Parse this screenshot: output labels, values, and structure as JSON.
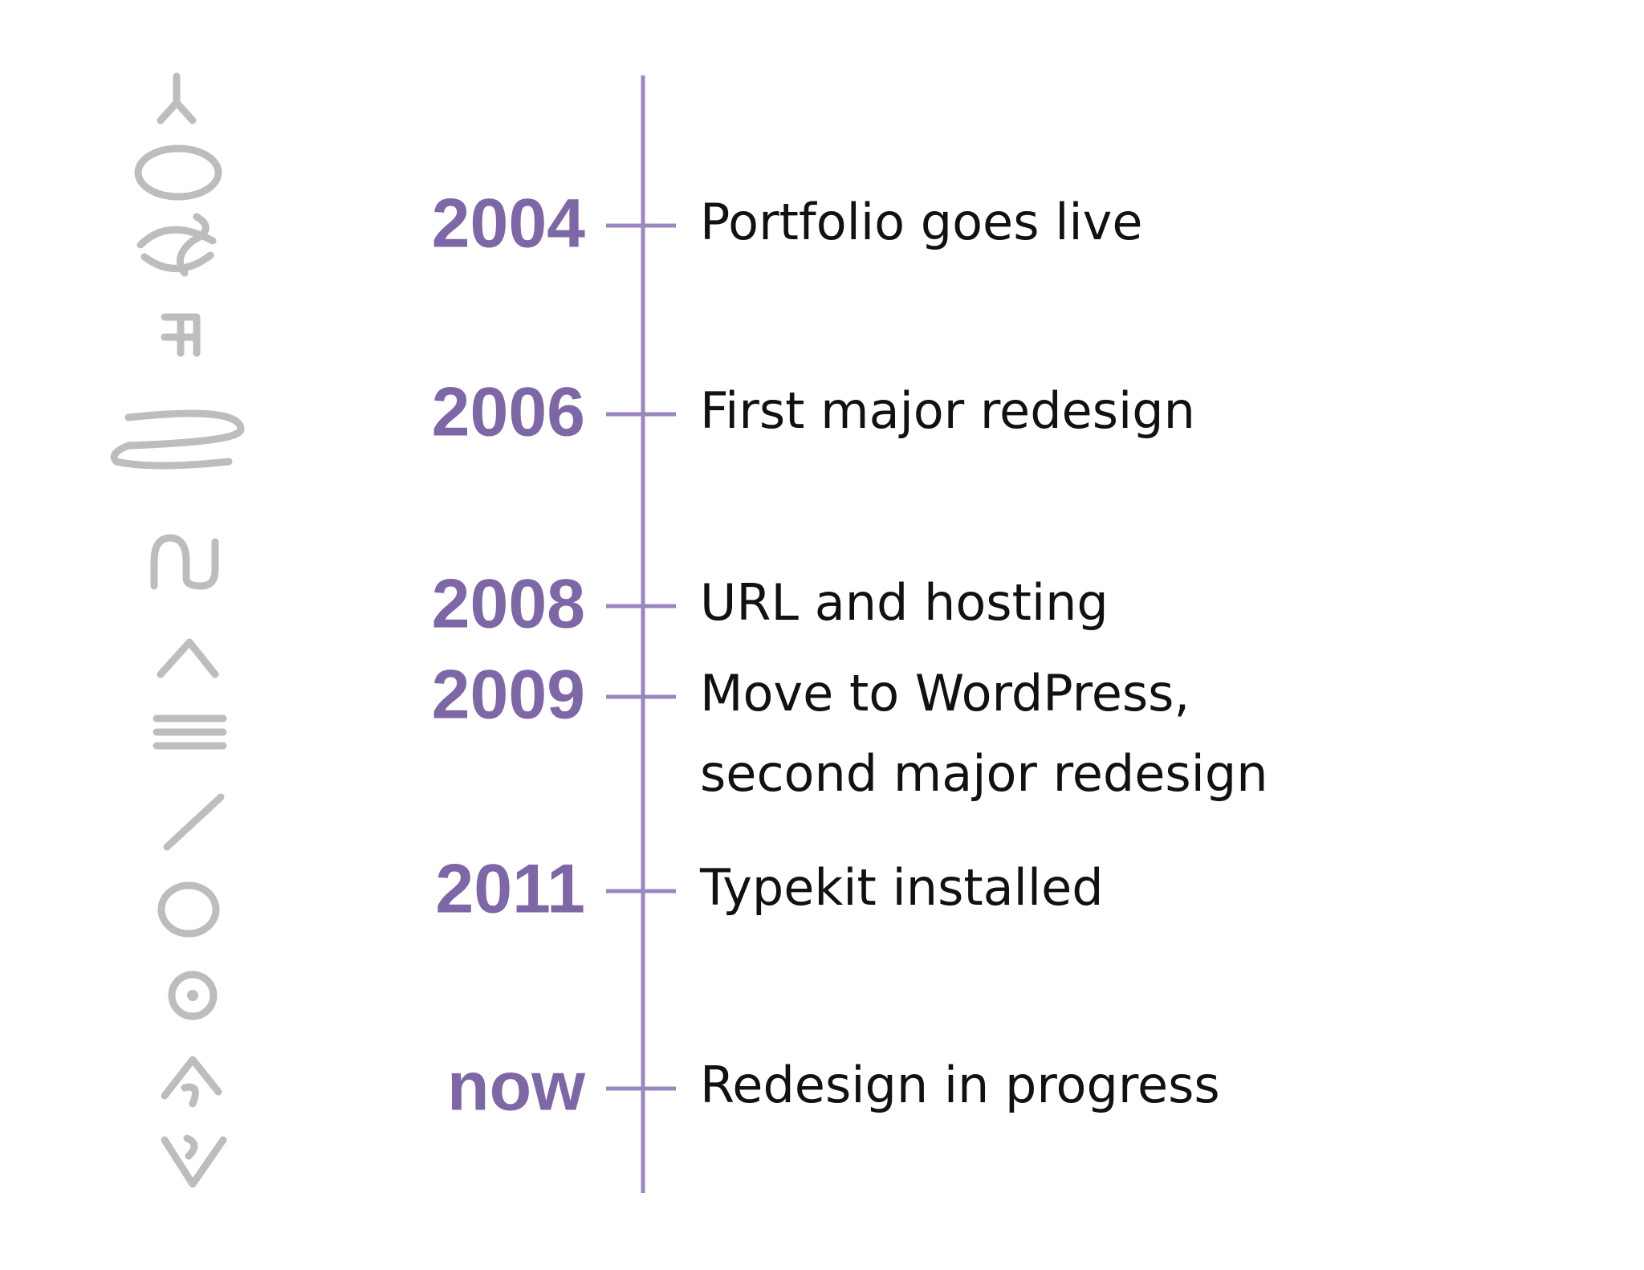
{
  "entries": [
    {
      "year": "2004",
      "lines": [
        "Portfolio goes live"
      ]
    },
    {
      "year": "2006",
      "lines": [
        "First major redesign"
      ]
    },
    {
      "year": "2008",
      "lines": [
        "URL and hosting"
      ]
    },
    {
      "year": "2009",
      "lines": [
        "Move to WordPress,",
        "second major redesign"
      ]
    },
    {
      "year": "2011",
      "lines": [
        "Typekit installed"
      ]
    },
    {
      "year": "now",
      "lines": [
        "Redesign in progress"
      ]
    }
  ]
}
